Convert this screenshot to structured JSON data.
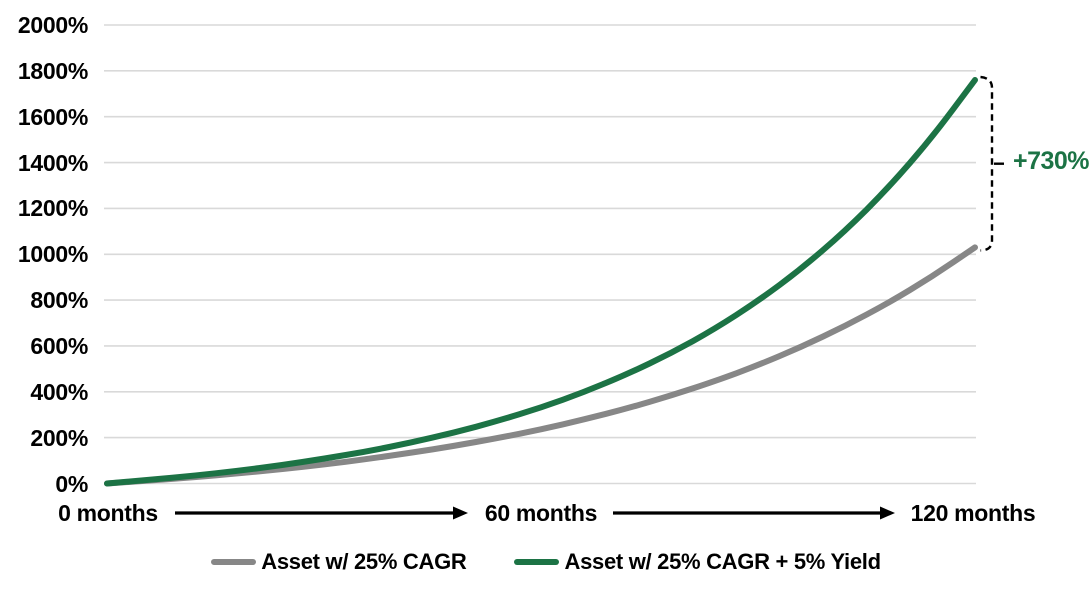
{
  "chart_data": {
    "type": "line",
    "title": "",
    "x_unit": "months",
    "x": [
      0,
      6,
      12,
      18,
      24,
      30,
      36,
      42,
      48,
      54,
      60,
      66,
      72,
      78,
      84,
      90,
      96,
      102,
      108,
      114,
      120
    ],
    "series": [
      {
        "name": "Asset w/ 25% CAGR",
        "color": "#878787",
        "values": [
          0,
          13,
          27,
          44,
          62,
          83,
          107,
          134,
          164,
          198,
          236,
          280,
          328,
          384,
          446,
          516,
          596,
          686,
          787,
          901,
          1030
        ]
      },
      {
        "name": "Asset w/ 25% CAGR + 5% Yield",
        "color": "#1C7345",
        "values": [
          0,
          16,
          34,
          55,
          79,
          108,
          140,
          178,
          222,
          273,
          331,
          399,
          478,
          569,
          674,
          796,
          937,
          1100,
          1289,
          1507,
          1760
        ]
      }
    ],
    "ylim": [
      0,
      2000
    ],
    "y_tick_step": 200,
    "y_tick_labels": [
      "2000%",
      "1800%",
      "1600%",
      "1400%",
      "1200%",
      "1000%",
      "800%",
      "600%",
      "400%",
      "200%",
      "0%"
    ],
    "x_axis_labels": [
      "0 months",
      "60 months",
      "120 months"
    ],
    "annotation": {
      "label": "+730%",
      "color": "#1C7345",
      "from_value": 1030,
      "to_value": 1760
    },
    "grid": "horizontal-only",
    "gridline_color": "#D9D9D9",
    "legend_position": "bottom",
    "axis_text_color": "#000000"
  }
}
